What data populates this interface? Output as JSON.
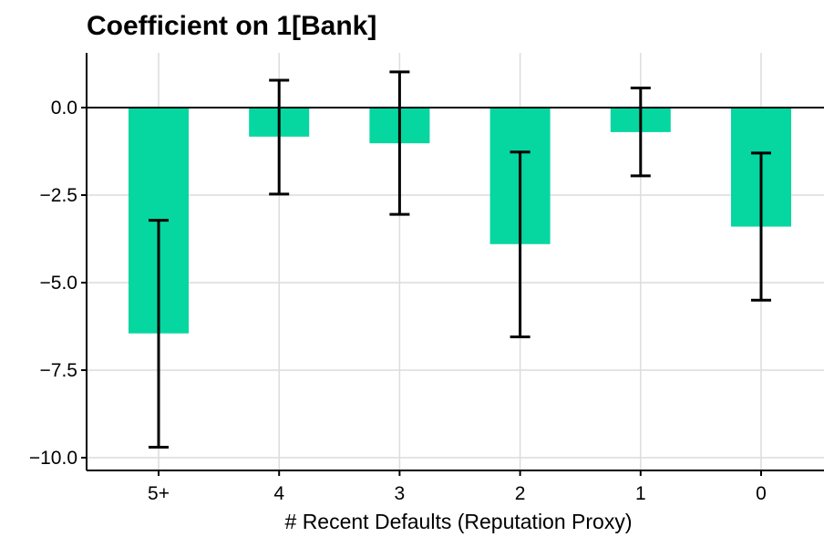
{
  "chart_data": {
    "type": "bar",
    "title": "Coefficient on 1[Bank]",
    "xlabel": "# Recent Defaults (Reputation Proxy)",
    "ylabel": "",
    "categories": [
      "5+",
      "4",
      "3",
      "2",
      "1",
      "0"
    ],
    "values": [
      -6.45,
      -0.83,
      -1.02,
      -3.9,
      -0.7,
      -3.4
    ],
    "error_low": [
      -9.7,
      -2.47,
      -3.05,
      -6.55,
      -1.95,
      -5.5
    ],
    "error_high": [
      -3.22,
      0.78,
      1.02,
      -1.27,
      0.56,
      -1.3
    ],
    "ylim": [
      -10.2,
      1.5
    ],
    "yticks": [
      0.0,
      -2.5,
      -5.0,
      -7.5,
      -10.0
    ],
    "ytick_labels": [
      "0.0",
      "−2.5",
      "−5.0",
      "−7.5",
      "−10.0"
    ],
    "bar_color": "#06d6a0",
    "grid": true,
    "legend": "none"
  }
}
